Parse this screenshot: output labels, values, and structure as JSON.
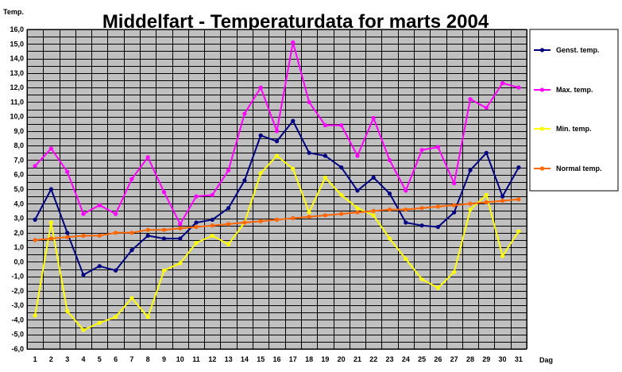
{
  "chart_data": {
    "type": "line",
    "title": "Middelfart - Temperaturdata for marts 2004",
    "ylabel": "Temp.",
    "xlabel": "Dag",
    "x": [
      1,
      2,
      3,
      4,
      5,
      6,
      7,
      8,
      9,
      10,
      11,
      12,
      13,
      14,
      15,
      16,
      17,
      18,
      19,
      20,
      21,
      22,
      23,
      24,
      25,
      26,
      27,
      28,
      29,
      30,
      31
    ],
    "ylim": [
      -6.0,
      16.0
    ],
    "ytick_step": 0.5,
    "ytick_labels": [
      "-6,0",
      "-5,0",
      "-4,0",
      "-3,0",
      "-2,0",
      "-1,0",
      "0,0",
      "1,0",
      "2,0",
      "3,0",
      "4,0",
      "5,0",
      "6,0",
      "7,0",
      "8,0",
      "9,0",
      "10,0",
      "11,0",
      "12,0",
      "13,0",
      "14,0",
      "15,0",
      "16,0"
    ],
    "grid": true,
    "plot_background": "#c0c0c0",
    "legend_position": "right",
    "series": [
      {
        "name": "Genst. temp.",
        "color": "#000080",
        "values": [
          2.9,
          5.0,
          2.0,
          -0.9,
          -0.3,
          -0.6,
          0.8,
          1.8,
          1.6,
          1.6,
          2.7,
          2.9,
          3.7,
          5.6,
          8.7,
          8.3,
          9.7,
          7.5,
          7.3,
          6.5,
          4.9,
          5.8,
          4.7,
          2.7,
          2.5,
          2.4,
          3.4,
          6.3,
          7.5,
          4.5,
          6.5
        ]
      },
      {
        "name": "Max. temp.",
        "color": "#ff00ff",
        "values": [
          6.6,
          7.8,
          6.2,
          3.3,
          3.9,
          3.3,
          5.7,
          7.2,
          4.8,
          2.6,
          4.5,
          4.6,
          6.3,
          10.2,
          12.0,
          9.0,
          15.1,
          11.0,
          9.4,
          9.4,
          7.3,
          9.9,
          7.0,
          4.9,
          7.7,
          7.9,
          5.4,
          11.2,
          10.6,
          12.3,
          12.0
        ]
      },
      {
        "name": "Min. temp.",
        "color": "#ffff00",
        "values": [
          -3.7,
          2.7,
          -3.4,
          -4.7,
          -4.2,
          -3.8,
          -2.5,
          -3.8,
          -0.6,
          -0.1,
          1.3,
          1.8,
          1.2,
          2.7,
          6.1,
          7.3,
          6.4,
          3.4,
          5.8,
          4.6,
          3.7,
          3.2,
          1.6,
          0.2,
          -1.2,
          -1.8,
          -0.7,
          3.6,
          4.6,
          0.4,
          2.1
        ]
      },
      {
        "name": "Normal temp.",
        "color": "#ff6600",
        "values": [
          1.5,
          1.6,
          1.7,
          1.8,
          1.8,
          2.0,
          2.0,
          2.2,
          2.2,
          2.3,
          2.4,
          2.5,
          2.6,
          2.7,
          2.8,
          2.9,
          3.0,
          3.1,
          3.2,
          3.3,
          3.4,
          3.5,
          3.6,
          3.6,
          3.7,
          3.8,
          3.9,
          4.0,
          4.1,
          4.2,
          4.3
        ]
      }
    ]
  }
}
